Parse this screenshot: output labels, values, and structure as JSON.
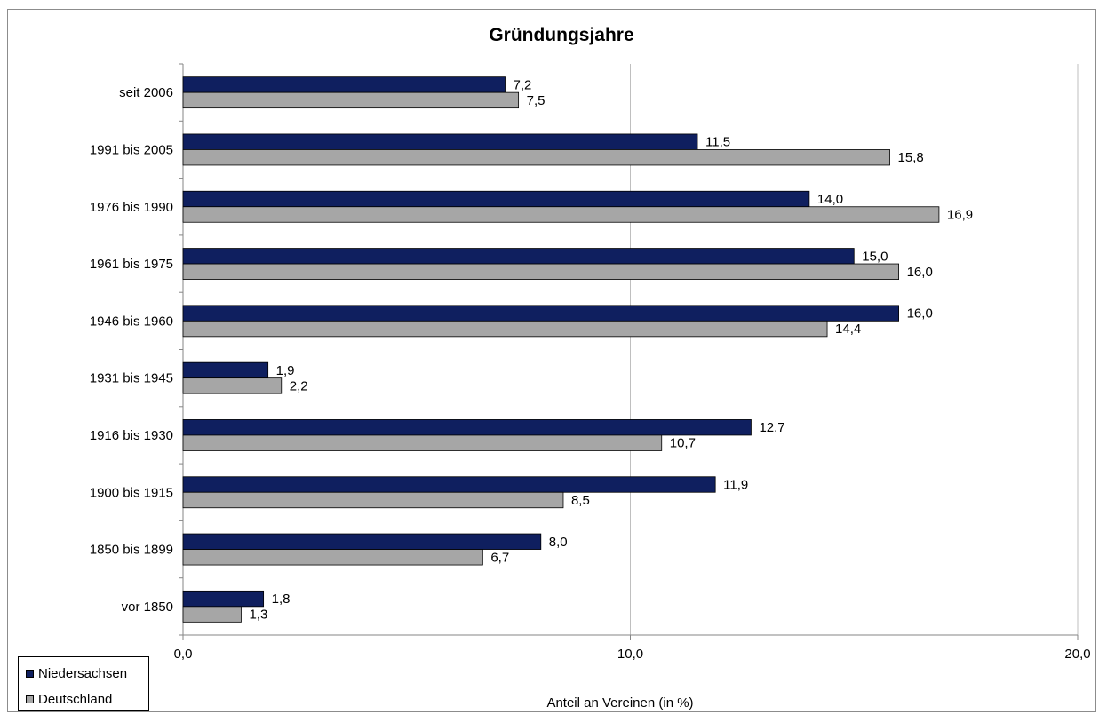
{
  "chart_data": {
    "type": "bar",
    "orientation": "horizontal",
    "title": "Gründungsjahre",
    "xlabel": "Anteil an Vereinen (in %)",
    "ylabel": "",
    "xlim": [
      0,
      20
    ],
    "x_ticks": [
      "0,0",
      "10,0",
      "20,0"
    ],
    "grid": true,
    "legend_position": "bottom-left",
    "categories": [
      "seit 2006",
      "1991 bis 2005",
      "1976 bis 1990",
      "1961 bis 1975",
      "1946 bis 1960",
      "1931 bis 1945",
      "1916 bis 1930",
      "1900 bis 1915",
      "1850 bis 1899",
      "vor 1850"
    ],
    "series": [
      {
        "name": "Niedersachsen",
        "color": "#0f1f5f",
        "values": [
          7.2,
          11.5,
          14.0,
          15.0,
          16.0,
          1.9,
          12.7,
          11.9,
          8.0,
          1.8
        ],
        "labels": [
          "7,2",
          "11,5",
          "14,0",
          "15,0",
          "16,0",
          "1,9",
          "12,7",
          "11,9",
          "8,0",
          "1,8"
        ]
      },
      {
        "name": "Deutschland",
        "color": "#a6a6a6",
        "values": [
          7.5,
          15.8,
          16.9,
          16.0,
          14.4,
          2.2,
          10.7,
          8.5,
          6.7,
          1.3
        ],
        "labels": [
          "7,5",
          "15,8",
          "16,9",
          "16,0",
          "14,4",
          "2,2",
          "10,7",
          "8,5",
          "6,7",
          "1,3"
        ]
      }
    ]
  }
}
